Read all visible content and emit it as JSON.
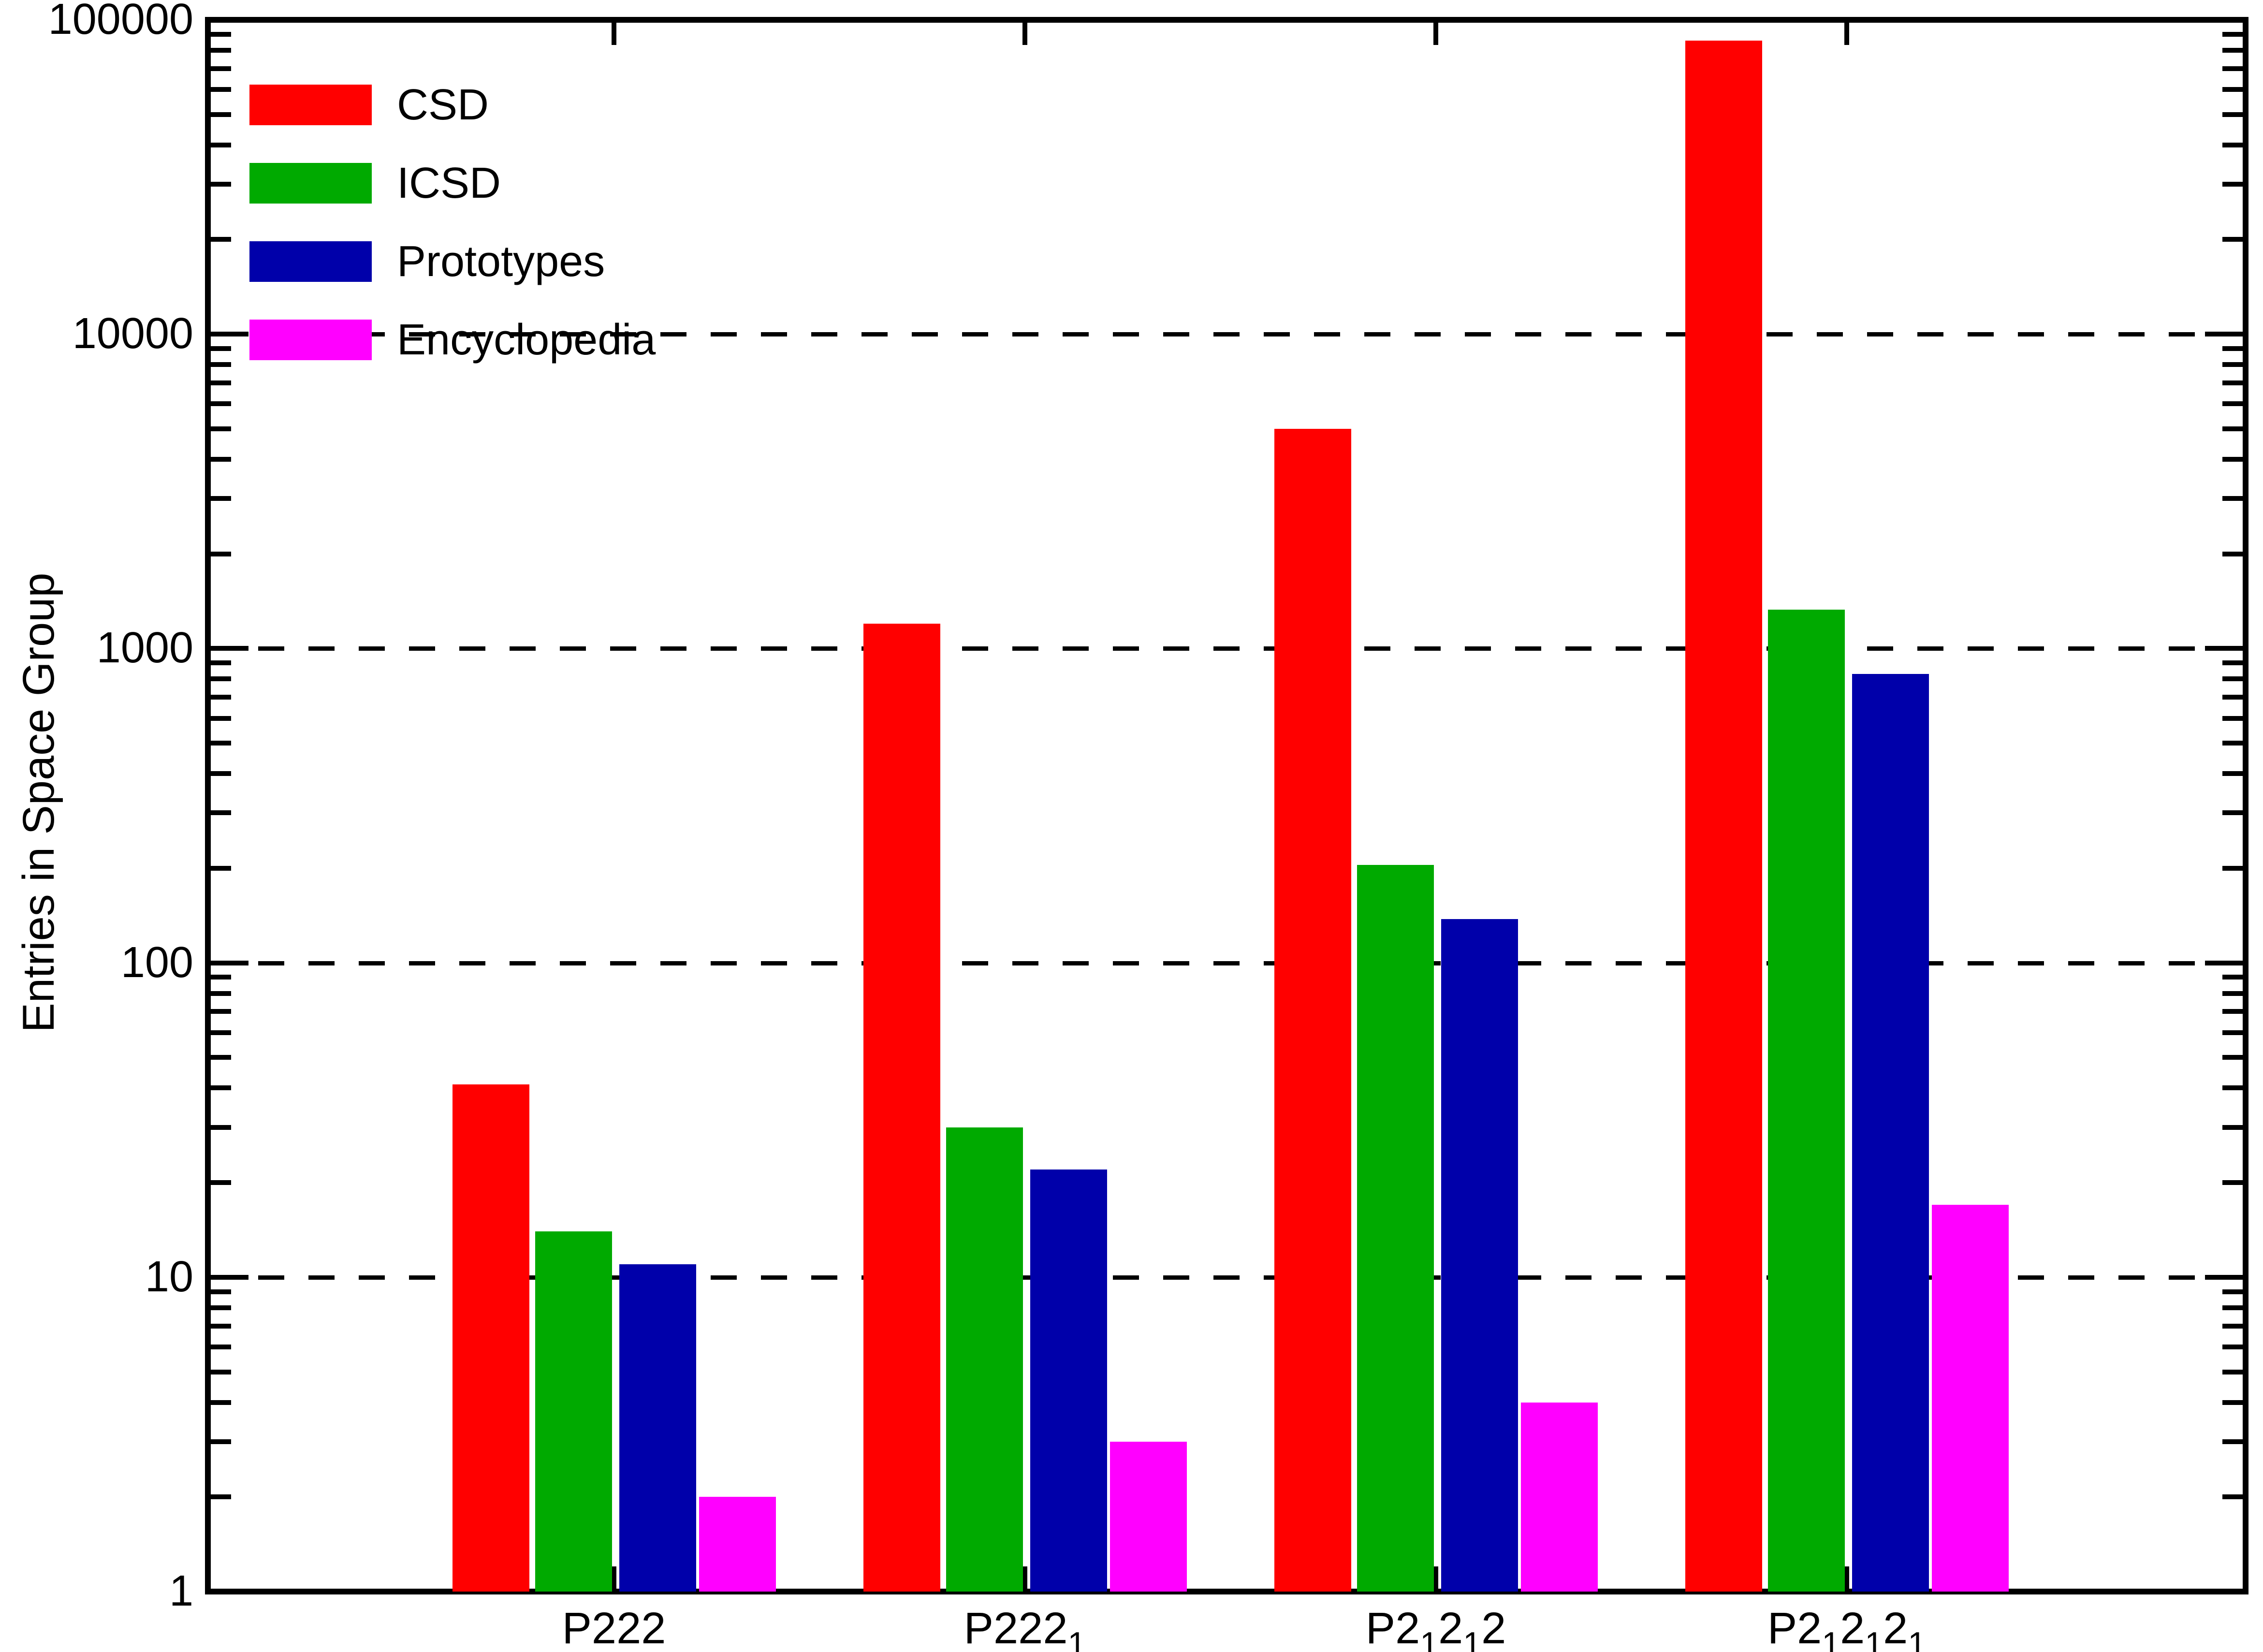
{
  "chart_data": {
    "type": "bar",
    "title": "",
    "ylabel": "Entries in Space Group",
    "xlabel": "",
    "y_scale": "log",
    "ylim": [
      1,
      100000
    ],
    "yticks": [
      1,
      10,
      100,
      1000,
      10000,
      100000
    ],
    "ytick_labels": [
      "1",
      "10",
      "100",
      "1000",
      "10000",
      "100000"
    ],
    "grid": "horizontal-dashed",
    "legend_position": "top-left",
    "categories": [
      "P222",
      "P222_1",
      "P2_12_12",
      "P2_12_12_1"
    ],
    "series": [
      {
        "name": "CSD",
        "color": "#ff0000",
        "values": [
          41,
          1200,
          5000,
          86000
        ]
      },
      {
        "name": "ICSD",
        "color": "#00aa00",
        "values": [
          14,
          30,
          205,
          1330
        ]
      },
      {
        "name": "Prototypes",
        "color": "#0000aa",
        "values": [
          11,
          22,
          138,
          830
        ]
      },
      {
        "name": "Encyclopedia",
        "color": "#ff00ff",
        "values": [
          2,
          3,
          4,
          17
        ]
      }
    ]
  }
}
